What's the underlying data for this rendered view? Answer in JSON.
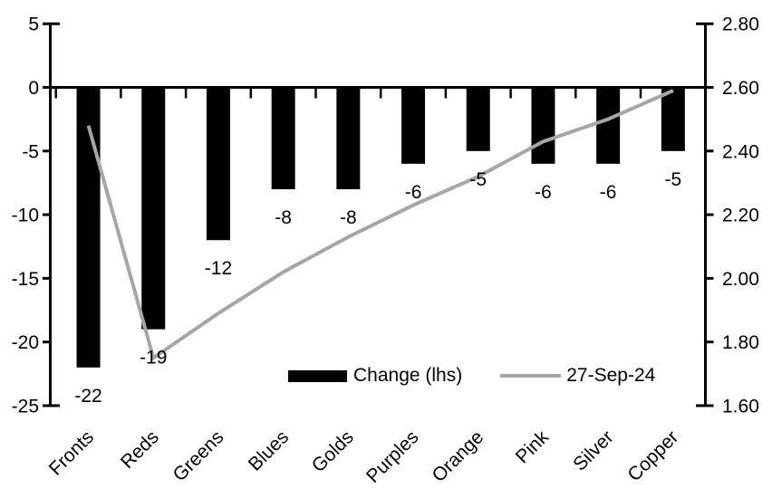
{
  "chart_data": {
    "type": "combo-bar-line",
    "categories": [
      "Fronts",
      "Reds",
      "Greens",
      "Blues",
      "Golds",
      "Purples",
      "Orange",
      "Pink",
      "Silver",
      "Copper"
    ],
    "series": [
      {
        "name": "Change (lhs)",
        "type": "bar",
        "axis": "left",
        "color": "#000000",
        "values": [
          -22,
          -19,
          -12,
          -8,
          -8,
          -6,
          -5,
          -6,
          -6,
          -5
        ],
        "data_labels": [
          "-22",
          "-19",
          "-12",
          "-8",
          "-8",
          "-6",
          "-5",
          "-6",
          "-6",
          "-5"
        ]
      },
      {
        "name": "27-Sep-24",
        "type": "line",
        "axis": "right",
        "color": "#a6a6a6",
        "values": [
          2.48,
          1.75,
          1.89,
          2.02,
          2.13,
          2.23,
          2.32,
          2.43,
          2.5,
          2.59
        ]
      }
    ],
    "left_axis": {
      "range": [
        -25,
        5
      ],
      "tick_labels": [
        "5",
        "0",
        "-5",
        "-10",
        "-15",
        "-20",
        "-25"
      ],
      "tick_values": [
        5,
        0,
        -5,
        -10,
        -15,
        -20,
        -25
      ]
    },
    "right_axis": {
      "range": [
        1.6,
        2.8
      ],
      "tick_labels": [
        "2.80",
        "2.60",
        "2.40",
        "2.20",
        "2.00",
        "1.80",
        "1.60"
      ],
      "tick_values": [
        2.8,
        2.6,
        2.4,
        2.2,
        2.0,
        1.8,
        1.6
      ]
    },
    "legend": {
      "position": "inside-bottom",
      "entries": [
        "Change (lhs)",
        "27-Sep-24"
      ]
    },
    "grid": false,
    "axis_color": "#000000",
    "background": "#ffffff"
  }
}
